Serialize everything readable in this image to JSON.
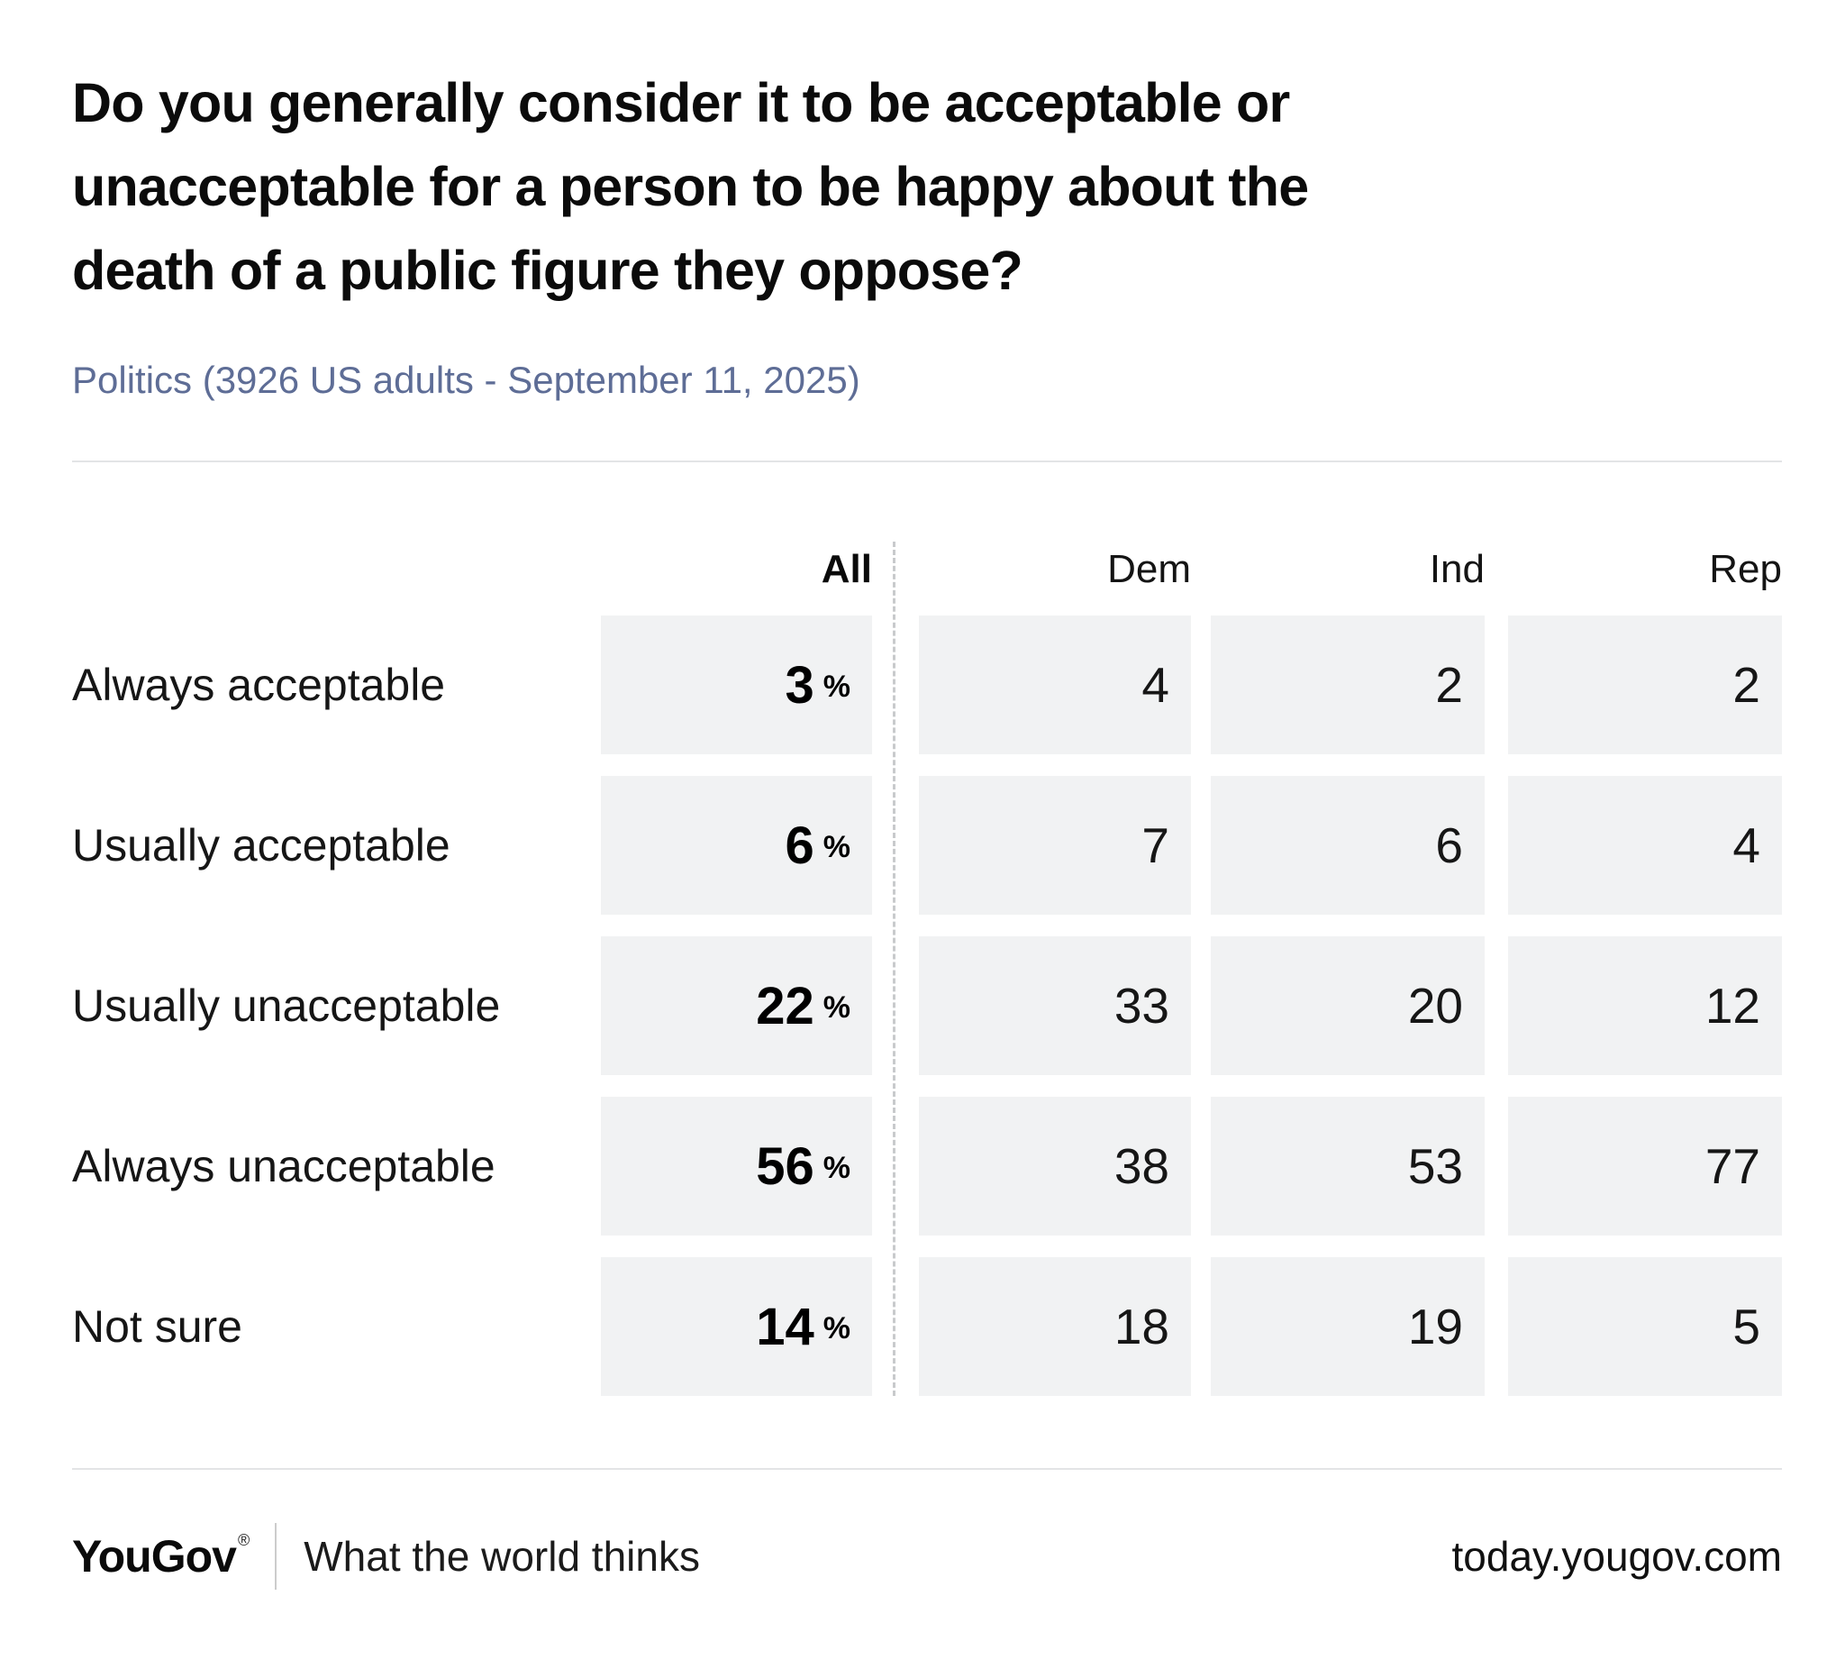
{
  "title": "Do you generally consider it to be acceptable or unacceptable for a person to be happy about the death of a public figure they oppose?",
  "subtitle": "Politics (3926 US adults - September 11, 2025)",
  "table": {
    "columns": [
      "All",
      "Dem",
      "Ind",
      "Rep"
    ],
    "pct_symbol": "%",
    "rows": [
      {
        "label": "Always acceptable",
        "all": "3",
        "dem": "4",
        "ind": "2",
        "rep": "2"
      },
      {
        "label": "Usually acceptable",
        "all": "6",
        "dem": "7",
        "ind": "6",
        "rep": "4"
      },
      {
        "label": "Usually unacceptable",
        "all": "22",
        "dem": "33",
        "ind": "20",
        "rep": "12"
      },
      {
        "label": "Always unacceptable",
        "all": "56",
        "dem": "38",
        "ind": "53",
        "rep": "77"
      },
      {
        "label": "Not sure",
        "all": "14",
        "dem": "18",
        "ind": "19",
        "rep": "5"
      }
    ]
  },
  "chart_data": {
    "type": "table",
    "title": "Do you generally consider it to be acceptable or unacceptable for a person to be happy about the death of a public figure they oppose?",
    "subtitle": "Politics (3926 US adults - September 11, 2025)",
    "categories": [
      "Always acceptable",
      "Usually acceptable",
      "Usually unacceptable",
      "Always unacceptable",
      "Not sure"
    ],
    "series": [
      {
        "name": "All",
        "unit": "%",
        "values": [
          3,
          6,
          22,
          56,
          14
        ]
      },
      {
        "name": "Dem",
        "values": [
          4,
          7,
          33,
          38,
          18
        ]
      },
      {
        "name": "Ind",
        "values": [
          2,
          6,
          20,
          53,
          19
        ]
      },
      {
        "name": "Rep",
        "values": [
          2,
          4,
          12,
          77,
          5
        ]
      }
    ]
  },
  "footer": {
    "logo": "YouGov",
    "registered": "®",
    "tagline": "What the world thinks",
    "url": "today.yougov.com"
  },
  "colors": {
    "subtitle": "#5e6d96",
    "cell_background": "#f1f2f3",
    "rule": "#e3e4e6",
    "dashed_separator": "#c8cacc",
    "text": "#111111"
  }
}
